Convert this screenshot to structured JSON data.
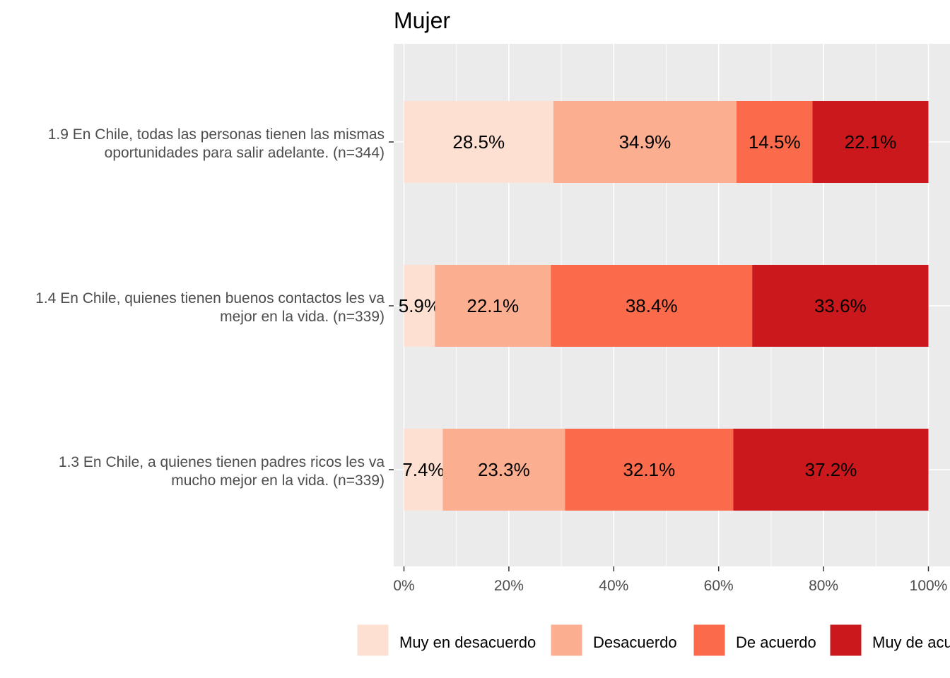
{
  "chart_data": {
    "type": "bar",
    "orientation": "horizontal",
    "stacked": true,
    "title": "Mujer",
    "categories": [
      [
        "1.9 En Chile, todas las personas tienen las mismas",
        "oportunidades para salir adelante. (n=344)"
      ],
      [
        "1.4 En Chile, quienes tienen buenos contactos les va",
        "mejor en la vida. (n=339)"
      ],
      [
        "1.3 En Chile, a quienes tienen padres ricos les va",
        "mucho mejor en la vida. (n=339)"
      ]
    ],
    "series": [
      {
        "name": "Muy en desacuerdo",
        "color": "#FEE0D2",
        "values": [
          28.5,
          5.9,
          7.4
        ]
      },
      {
        "name": "Desacuerdo",
        "color": "#FCAE91",
        "values": [
          34.9,
          22.1,
          23.3
        ]
      },
      {
        "name": "De acuerdo",
        "color": "#FB6A4A",
        "values": [
          14.5,
          38.4,
          32.1
        ]
      },
      {
        "name": "Muy de acuerdo",
        "color": "#CB181D",
        "values": [
          22.1,
          33.6,
          37.2
        ]
      }
    ],
    "data_labels": [
      [
        "28.5%",
        "5.9%",
        "7.4%"
      ],
      [
        "34.9%",
        "22.1%",
        "23.3%"
      ],
      [
        "14.5%",
        "38.4%",
        "32.1%"
      ],
      [
        "22.1%",
        "33.6%",
        "37.2%"
      ]
    ],
    "x_ticks": [
      "0%",
      "20%",
      "40%",
      "60%",
      "80%",
      "100%"
    ],
    "xlim": [
      0,
      100
    ],
    "xlabel": "",
    "ylabel": "",
    "grid": true,
    "legend_position": "bottom",
    "background_color": "#EBEBEB"
  }
}
